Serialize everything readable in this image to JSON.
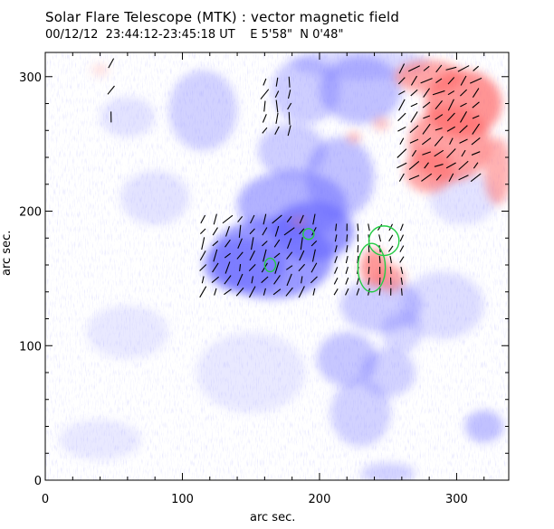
{
  "title": "Solar Flare Telescope (MTK) : vector magnetic field",
  "subtitle": "00/12/12  23:44:12-23:45:18 UT    E 5'58\"  N 0'48\"",
  "chart_data": {
    "type": "heatmap",
    "xlabel": "arc sec.",
    "ylabel": "arc sec.",
    "xlim": [
      0,
      338
    ],
    "ylim": [
      0,
      318
    ],
    "x_ticks": [
      0,
      100,
      200,
      300
    ],
    "y_ticks": [
      0,
      100,
      200,
      300
    ],
    "x_tick_labels": [
      "0",
      "100",
      "200",
      "300"
    ],
    "y_tick_labels": [
      "0",
      "100",
      "200",
      "300"
    ],
    "colors": {
      "negative_polarity": "#6a6aff",
      "positive_polarity": "#ff6a6a",
      "transverse_vectors": "#000000",
      "contours": "#22cc44",
      "axes": "#000000"
    },
    "negative_regions": [
      {
        "x": 165,
        "y": 165,
        "rx": 45,
        "ry": 30,
        "strength": 0.9
      },
      {
        "x": 195,
        "y": 185,
        "rx": 30,
        "ry": 22,
        "strength": 0.95
      },
      {
        "x": 180,
        "y": 205,
        "rx": 40,
        "ry": 25,
        "strength": 0.7
      },
      {
        "x": 145,
        "y": 160,
        "rx": 30,
        "ry": 20,
        "strength": 0.8
      },
      {
        "x": 215,
        "y": 225,
        "rx": 25,
        "ry": 30,
        "strength": 0.55
      },
      {
        "x": 230,
        "y": 290,
        "rx": 30,
        "ry": 25,
        "strength": 0.55
      },
      {
        "x": 190,
        "y": 290,
        "rx": 25,
        "ry": 25,
        "strength": 0.45
      },
      {
        "x": 115,
        "y": 275,
        "rx": 25,
        "ry": 30,
        "strength": 0.4
      },
      {
        "x": 230,
        "y": 310,
        "rx": 50,
        "ry": 12,
        "strength": 0.35
      },
      {
        "x": 245,
        "y": 130,
        "rx": 30,
        "ry": 20,
        "strength": 0.45
      },
      {
        "x": 220,
        "y": 90,
        "rx": 22,
        "ry": 20,
        "strength": 0.5
      },
      {
        "x": 230,
        "y": 50,
        "rx": 22,
        "ry": 25,
        "strength": 0.4
      },
      {
        "x": 250,
        "y": 80,
        "rx": 20,
        "ry": 18,
        "strength": 0.4
      },
      {
        "x": 320,
        "y": 40,
        "rx": 14,
        "ry": 12,
        "strength": 0.55
      },
      {
        "x": 250,
        "y": 5,
        "rx": 20,
        "ry": 8,
        "strength": 0.4
      },
      {
        "x": 180,
        "y": 245,
        "rx": 25,
        "ry": 20,
        "strength": 0.45
      },
      {
        "x": 60,
        "y": 270,
        "rx": 20,
        "ry": 15,
        "strength": 0.25
      },
      {
        "x": 80,
        "y": 210,
        "rx": 25,
        "ry": 20,
        "strength": 0.25
      },
      {
        "x": 60,
        "y": 110,
        "rx": 30,
        "ry": 20,
        "strength": 0.2
      },
      {
        "x": 150,
        "y": 80,
        "rx": 40,
        "ry": 30,
        "strength": 0.2
      },
      {
        "x": 290,
        "y": 130,
        "rx": 30,
        "ry": 25,
        "strength": 0.3
      },
      {
        "x": 305,
        "y": 210,
        "rx": 25,
        "ry": 20,
        "strength": 0.25
      },
      {
        "x": 40,
        "y": 30,
        "rx": 30,
        "ry": 15,
        "strength": 0.2
      },
      {
        "x": 260,
        "y": 110,
        "rx": 15,
        "ry": 15,
        "strength": 0.35
      }
    ],
    "positive_regions": [
      {
        "x": 305,
        "y": 280,
        "rx": 28,
        "ry": 25,
        "strength": 0.95
      },
      {
        "x": 295,
        "y": 250,
        "rx": 30,
        "ry": 28,
        "strength": 0.85
      },
      {
        "x": 280,
        "y": 230,
        "rx": 18,
        "ry": 16,
        "strength": 0.8
      },
      {
        "x": 330,
        "y": 230,
        "rx": 10,
        "ry": 25,
        "strength": 0.7
      },
      {
        "x": 280,
        "y": 300,
        "rx": 25,
        "ry": 12,
        "strength": 0.8
      },
      {
        "x": 240,
        "y": 158,
        "rx": 10,
        "ry": 14,
        "strength": 0.9
      },
      {
        "x": 252,
        "y": 150,
        "rx": 10,
        "ry": 10,
        "strength": 0.75
      },
      {
        "x": 225,
        "y": 255,
        "rx": 5,
        "ry": 4,
        "strength": 0.6
      },
      {
        "x": 245,
        "y": 265,
        "rx": 6,
        "ry": 5,
        "strength": 0.5
      },
      {
        "x": 40,
        "y": 305,
        "rx": 6,
        "ry": 4,
        "strength": 0.3
      },
      {
        "x": 185,
        "y": 192,
        "rx": 6,
        "ry": 4,
        "strength": 0.4
      }
    ],
    "contours": [
      {
        "x": 247,
        "y": 178,
        "rx": 11,
        "ry": 11
      },
      {
        "x": 238,
        "y": 158,
        "rx": 10,
        "ry": 18
      },
      {
        "x": 192,
        "y": 183,
        "rx": 4,
        "ry": 4
      },
      {
        "x": 164,
        "y": 160,
        "rx": 4,
        "ry": 5
      }
    ],
    "vector_fields": [
      {
        "x0": 115,
        "y0": 140,
        "x1": 200,
        "y1": 195,
        "step": 9,
        "angle": 60
      },
      {
        "x0": 212,
        "y0": 140,
        "x1": 262,
        "y1": 190,
        "step": 8,
        "angle": 80
      },
      {
        "x0": 260,
        "y0": 225,
        "x1": 320,
        "y1": 310,
        "step": 9,
        "angle": 40
      },
      {
        "x0": 160,
        "y0": 260,
        "x1": 185,
        "y1": 300,
        "step": 9,
        "angle": 75
      },
      {
        "x0": 48,
        "y0": 270,
        "x1": 55,
        "y1": 310,
        "step": 20,
        "angle": 70
      }
    ]
  }
}
